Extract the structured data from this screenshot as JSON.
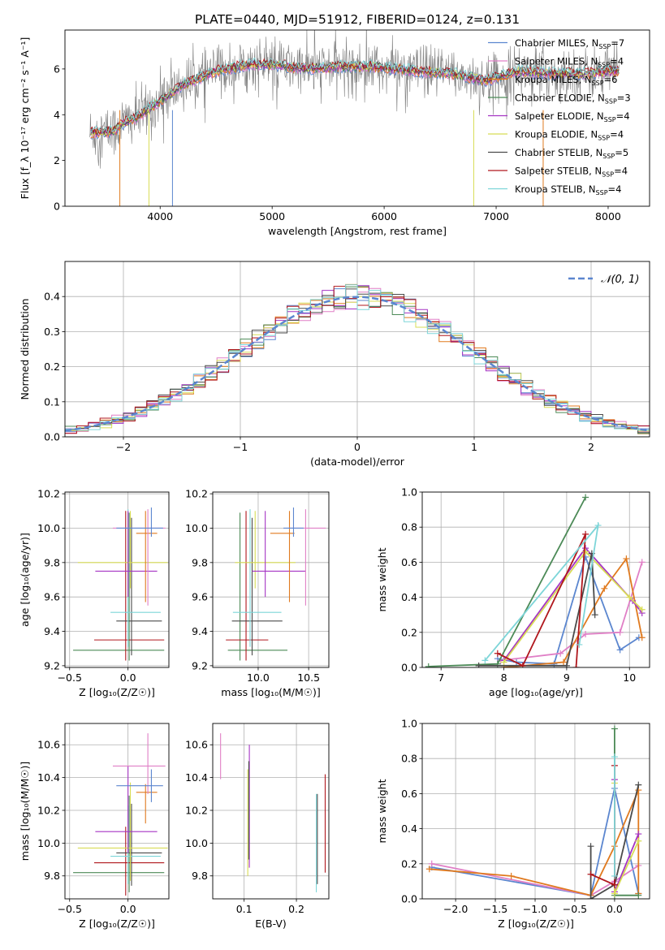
{
  "figure": {
    "title": "PLATE=0440, MJD=51912, FIBERID=0124, z=0.131"
  },
  "chart_data": [
    {
      "type": "line",
      "panel": "spectrum",
      "xlabel": "wavelength [Angstrom, rest frame]",
      "ylabel": "Flux [f_λ 10⁻¹⁷ erg cm⁻² s⁻¹ A⁻¹]",
      "xlim": [
        3150,
        8370
      ],
      "ylim": [
        0,
        7.7
      ],
      "xticks": [
        4000,
        5000,
        6000,
        7000,
        8000
      ],
      "yticks": [
        0,
        2,
        4,
        6
      ],
      "grid": false,
      "legend_position": "upper right",
      "observed_color": "#808080",
      "model_shape": {
        "x": [
          3400,
          3600,
          3650,
          3800,
          4000,
          4200,
          4500,
          4800,
          5000,
          5300,
          5600,
          5900,
          6100,
          6300,
          6600,
          6900,
          7200,
          7500,
          7800,
          8050
        ],
        "y": [
          3.2,
          3.3,
          3.6,
          3.9,
          4.6,
          5.3,
          5.9,
          6.2,
          6.2,
          6.0,
          6.1,
          6.1,
          6.0,
          5.9,
          5.8,
          5.5,
          5.9,
          5.8,
          5.8,
          5.9
        ]
      },
      "series": [
        {
          "name": "Chabrier MILES, N",
          "sub": "SSP",
          "eq": "=7",
          "color": "#5b86cf"
        },
        {
          "name": "Salpeter MILES, N",
          "sub": "SSP",
          "eq": "=4",
          "color": "#e07fc6"
        },
        {
          "name": "Kroupa MILES, N",
          "sub": "SSP",
          "eq": "=6",
          "color": "#e07a1f"
        },
        {
          "name": "Chabrier ELODIE, N",
          "sub": "SSP",
          "eq": "=3",
          "color": "#4c8a57"
        },
        {
          "name": "Salpeter ELODIE, N",
          "sub": "SSP",
          "eq": "=4",
          "color": "#a534c4"
        },
        {
          "name": "Kroupa ELODIE, N",
          "sub": "SSP",
          "eq": "=4",
          "color": "#d8dc55"
        },
        {
          "name": "Chabrier STELIB, N",
          "sub": "SSP",
          "eq": "=5",
          "color": "#4a4a4a"
        },
        {
          "name": "Salpeter STELIB, N",
          "sub": "SSP",
          "eq": "=4",
          "color": "#b0171d"
        },
        {
          "name": "Kroupa STELIB, N",
          "sub": "SSP",
          "eq": "=4",
          "color": "#7dd5d8"
        }
      ]
    },
    {
      "type": "line",
      "panel": "residuals",
      "xlabel": "(data-model)/error",
      "ylabel": "Normed distribution",
      "xlim": [
        -2.5,
        2.5
      ],
      "ylim": [
        0,
        0.5
      ],
      "xticks": [
        -2,
        -1,
        0,
        1,
        2
      ],
      "xticklabels": [
        "−2",
        "−1",
        "0",
        "1",
        "2"
      ],
      "yticks": [
        0,
        0.1,
        0.2,
        0.3,
        0.4
      ],
      "yticklabels": [
        "0.0",
        "0.1",
        "0.2",
        "0.3",
        "0.4"
      ],
      "grid": true,
      "legend": "𝒩(0, 1)",
      "bin_width": 0.1,
      "gaussian": {
        "mean": 0,
        "sigma": 1,
        "color": "#5b86cf"
      }
    },
    {
      "type": "scatter",
      "panel": "age-vs-Z",
      "xlabel": "Z [log₁₀(Z/Z☉)]",
      "ylabel": "age  [log₁₀(age/yr)]",
      "xlim": [
        -0.54,
        0.35
      ],
      "ylim": [
        9.19,
        10.21
      ],
      "xticks": [
        -0.5,
        0.0
      ],
      "xticklabels": [
        "−0.5",
        "0.0"
      ],
      "yticks": [
        9.2,
        9.4,
        9.6,
        9.8,
        10.0,
        10.2
      ],
      "yticklabels": [
        "9.2",
        "9.4",
        "9.6",
        "9.8",
        "10.0",
        "10.2"
      ],
      "grid": true,
      "points": [
        {
          "x": 0.01,
          "xerr": [
            0.48,
            0.3
          ],
          "y": 9.29,
          "yerr": [
            0.06,
            0.8
          ],
          "color": "#4c8a57"
        },
        {
          "x": -0.02,
          "xerr": [
            0.27,
            0.33
          ],
          "y": 9.35,
          "yerr": [
            0.12,
            0.75
          ],
          "color": "#b0171d"
        },
        {
          "x": 0.03,
          "xerr": [
            0.13,
            0.26
          ],
          "y": 9.46,
          "yerr": [
            0.2,
            0.6
          ],
          "color": "#4a4a4a"
        },
        {
          "x": 0.0,
          "xerr": [
            0.15,
            0.28
          ],
          "y": 9.51,
          "yerr": [
            0.2,
            0.6
          ],
          "color": "#7dd5d8"
        },
        {
          "x": 0.02,
          "xerr": [
            0.45,
            0.32
          ],
          "y": 9.8,
          "yerr": [
            0.15,
            0.3
          ],
          "color": "#d8dc55"
        },
        {
          "x": 0.0,
          "xerr": [
            0.28,
            0.25
          ],
          "y": 9.75,
          "yerr": [
            0.15,
            0.35
          ],
          "color": "#a534c4"
        },
        {
          "x": 0.15,
          "xerr": [
            0.08,
            0.1
          ],
          "y": 9.97,
          "yerr": [
            0.4,
            0.13
          ],
          "color": "#e07a1f"
        },
        {
          "x": 0.17,
          "xerr": [
            0.3,
            0.15
          ],
          "y": 10.0,
          "yerr": [
            0.45,
            0.11
          ],
          "color": "#e07fc6"
        },
        {
          "x": 0.2,
          "xerr": [
            0.3,
            0.1
          ],
          "y": 10.0,
          "yerr": [
            0.05,
            0.12
          ],
          "color": "#5b86cf"
        }
      ]
    },
    {
      "type": "scatter",
      "panel": "age-vs-mass",
      "xlabel": "mass [log₁₀(M/M☉)]",
      "ylabel": "",
      "xlim": [
        9.55,
        10.7
      ],
      "ylim": [
        9.19,
        10.21
      ],
      "xticks": [
        10.0,
        10.5
      ],
      "xticklabels": [
        "10.0",
        "10.5"
      ],
      "yticks": [
        9.2,
        9.4,
        9.6,
        9.8,
        10.0,
        10.2
      ],
      "yticklabels": [
        "9.2",
        "9.4",
        "9.6",
        "9.8",
        "10.0",
        "10.2"
      ],
      "grid": true,
      "points": [
        {
          "x": 9.82,
          "xerr": [
            0.12,
            0.47
          ],
          "y": 9.29,
          "yerr": [
            0.06,
            0.8
          ],
          "color": "#4c8a57"
        },
        {
          "x": 9.88,
          "xerr": [
            0.2,
            0.22
          ],
          "y": 9.35,
          "yerr": [
            0.12,
            0.75
          ],
          "color": "#b0171d"
        },
        {
          "x": 9.94,
          "xerr": [
            0.2,
            0.3
          ],
          "y": 9.46,
          "yerr": [
            0.2,
            0.6
          ],
          "color": "#4a4a4a"
        },
        {
          "x": 9.92,
          "xerr": [
            0.17,
            0.31
          ],
          "y": 9.51,
          "yerr": [
            0.2,
            0.6
          ],
          "color": "#7dd5d8"
        },
        {
          "x": 9.97,
          "xerr": [
            0.2,
            0.4
          ],
          "y": 9.8,
          "yerr": [
            0.15,
            0.3
          ],
          "color": "#d8dc55"
        },
        {
          "x": 10.07,
          "xerr": [
            0.13,
            0.4
          ],
          "y": 9.75,
          "yerr": [
            0.15,
            0.35
          ],
          "color": "#a534c4"
        },
        {
          "x": 10.31,
          "xerr": [
            0.19,
            0.05
          ],
          "y": 9.97,
          "yerr": [
            0.4,
            0.13
          ],
          "color": "#e07a1f"
        },
        {
          "x": 10.47,
          "xerr": [
            0.17,
            0.2
          ],
          "y": 10.0,
          "yerr": [
            0.45,
            0.11
          ],
          "color": "#e07fc6"
        },
        {
          "x": 10.35,
          "xerr": [
            0.1,
            0.1
          ],
          "y": 10.0,
          "yerr": [
            0.05,
            0.12
          ],
          "color": "#5b86cf"
        }
      ]
    },
    {
      "type": "line",
      "panel": "mass-weight-vs-age",
      "xlabel": "age  [log₁₀(age/yr)]",
      "ylabel": "mass weight",
      "xlim": [
        6.7,
        10.32
      ],
      "ylim": [
        0,
        1.0
      ],
      "xticks": [
        7,
        8,
        9,
        10
      ],
      "yticks": [
        0,
        0.2,
        0.4,
        0.6,
        0.8,
        1.0
      ],
      "yticklabels": [
        "0.0",
        "0.2",
        "0.4",
        "0.6",
        "0.8",
        "1.0"
      ],
      "grid": true,
      "series": [
        {
          "name": "Chabrier MILES",
          "color": "#5b86cf",
          "x": [
            7.9,
            8.2,
            8.8,
            9.3,
            9.85,
            10.15
          ],
          "y": [
            0.05,
            0.03,
            0.02,
            0.63,
            0.1,
            0.17
          ]
        },
        {
          "name": "Salpeter MILES",
          "color": "#e07fc6",
          "x": [
            7.95,
            8.9,
            9.3,
            9.85,
            10.2
          ],
          "y": [
            0.04,
            0.08,
            0.19,
            0.2,
            0.6
          ]
        },
        {
          "name": "Kroupa MILES",
          "color": "#e07a1f",
          "x": [
            8.0,
            8.95,
            9.6,
            9.95,
            10.2
          ],
          "y": [
            0.0,
            0.03,
            0.45,
            0.62,
            0.17
          ]
        },
        {
          "name": "Chabrier ELODIE",
          "color": "#4c8a57",
          "x": [
            6.8,
            7.9,
            9.3
          ],
          "y": [
            0.005,
            0.02,
            0.97
          ]
        },
        {
          "name": "Salpeter ELODIE",
          "color": "#a534c4",
          "x": [
            8.0,
            9.3,
            10.05,
            10.2
          ],
          "y": [
            0.04,
            0.68,
            0.38,
            0.31
          ]
        },
        {
          "name": "Kroupa ELODIE",
          "color": "#d8dc55",
          "x": [
            8.0,
            9.3,
            10.0,
            10.2
          ],
          "y": [
            0.03,
            0.66,
            0.4,
            0.33
          ]
        },
        {
          "name": "Chabrier STELIB",
          "color": "#4a4a4a",
          "x": [
            7.6,
            9.0,
            9.4,
            9.45
          ],
          "y": [
            0.01,
            0.01,
            0.65,
            0.3
          ]
        },
        {
          "name": "Salpeter STELIB",
          "color": "#b0171d",
          "x": [
            7.9,
            8.3,
            9.3,
            9.15
          ],
          "y": [
            0.08,
            0.01,
            0.76,
            0.0
          ]
        },
        {
          "name": "Kroupa STELIB",
          "color": "#7dd5d8",
          "x": [
            7.7,
            9.5,
            9.2
          ],
          "y": [
            0.04,
            0.81,
            0.13
          ]
        }
      ]
    },
    {
      "type": "scatter",
      "panel": "mass-vs-Z",
      "xlabel": "Z [log₁₀(Z/Z☉)]",
      "ylabel": "mass [log₁₀(M/M☉)]",
      "xlim": [
        -0.54,
        0.35
      ],
      "ylim": [
        9.66,
        10.73
      ],
      "xticks": [
        -0.5,
        0.0
      ],
      "xticklabels": [
        "−0.5",
        "0.0"
      ],
      "yticks": [
        9.8,
        10.0,
        10.2,
        10.4,
        10.6
      ],
      "yticklabels": [
        "9.8",
        "10.0",
        "10.2",
        "10.4",
        "10.6"
      ],
      "grid": true,
      "points": [
        {
          "x": 0.01,
          "xerr": [
            0.48,
            0.3
          ],
          "y": 9.82,
          "yerr": [
            0.12,
            0.47
          ],
          "color": "#4c8a57"
        },
        {
          "x": -0.02,
          "xerr": [
            0.27,
            0.33
          ],
          "y": 9.88,
          "yerr": [
            0.2,
            0.22
          ],
          "color": "#b0171d"
        },
        {
          "x": 0.03,
          "xerr": [
            0.13,
            0.26
          ],
          "y": 9.94,
          "yerr": [
            0.2,
            0.3
          ],
          "color": "#4a4a4a"
        },
        {
          "x": 0.0,
          "xerr": [
            0.15,
            0.28
          ],
          "y": 9.92,
          "yerr": [
            0.17,
            0.31
          ],
          "color": "#7dd5d8"
        },
        {
          "x": 0.02,
          "xerr": [
            0.45,
            0.32
          ],
          "y": 9.97,
          "yerr": [
            0.2,
            0.4
          ],
          "color": "#d8dc55"
        },
        {
          "x": 0.0,
          "xerr": [
            0.28,
            0.25
          ],
          "y": 10.07,
          "yerr": [
            0.13,
            0.4
          ],
          "color": "#a534c4"
        },
        {
          "x": 0.15,
          "xerr": [
            0.08,
            0.1
          ],
          "y": 10.31,
          "yerr": [
            0.19,
            0.05
          ],
          "color": "#e07a1f"
        },
        {
          "x": 0.17,
          "xerr": [
            0.3,
            0.15
          ],
          "y": 10.47,
          "yerr": [
            0.17,
            0.2
          ],
          "color": "#e07fc6"
        },
        {
          "x": 0.2,
          "xerr": [
            0.3,
            0.1
          ],
          "y": 10.35,
          "yerr": [
            0.1,
            0.1
          ],
          "color": "#5b86cf"
        }
      ]
    },
    {
      "type": "scatter",
      "panel": "mass-vs-EBV",
      "xlabel": "E(B-V)",
      "ylabel": "",
      "xlim": [
        0.04,
        0.262
      ],
      "ylim": [
        9.66,
        10.73
      ],
      "xticks": [
        0.1,
        0.2
      ],
      "xticklabels": [
        "0.1",
        "0.2"
      ],
      "yticks": [
        9.8,
        10.0,
        10.2,
        10.4,
        10.6
      ],
      "yticklabels": [
        "9.8",
        "10.0",
        "10.2",
        "10.4",
        "10.6"
      ],
      "grid": true,
      "points": [
        {
          "x": 0.055,
          "y": 10.53,
          "yerr": [
            0.14,
            0.14
          ],
          "color": "#e07fc6"
        },
        {
          "x": 0.107,
          "y": 10.05,
          "yerr": [
            0.25,
            0.4
          ],
          "color": "#d8dc55"
        },
        {
          "x": 0.11,
          "y": 10.2,
          "yerr": [
            0.35,
            0.4
          ],
          "color": "#a534c4"
        },
        {
          "x": 0.109,
          "y": 10.25,
          "yerr": [
            0.35,
            0.25
          ],
          "color": "#4a4a4a"
        },
        {
          "x": 0.238,
          "y": 10.0,
          "yerr": [
            0.3,
            0.3
          ],
          "color": "#7dd5d8"
        },
        {
          "x": 0.24,
          "y": 10.0,
          "yerr": [
            0.25,
            0.3
          ],
          "color": "#4a4a4a"
        },
        {
          "x": 0.255,
          "y": 10.12,
          "yerr": [
            0.3,
            0.3
          ],
          "color": "#b0171d"
        }
      ]
    },
    {
      "type": "line",
      "panel": "mass-weight-vs-Z",
      "xlabel": "Z [log₁₀(Z/Z☉)]",
      "ylabel": "mass weight",
      "xlim": [
        -2.42,
        0.44
      ],
      "ylim": [
        0,
        1.0
      ],
      "xticks": [
        -2.0,
        -1.5,
        -1.0,
        -0.5,
        0.0
      ],
      "xticklabels": [
        "−2.0",
        "−1.5",
        "−1.0",
        "−0.5",
        "0.0"
      ],
      "yticks": [
        0,
        0.2,
        0.4,
        0.6,
        0.8,
        1.0
      ],
      "yticklabels": [
        "0.0",
        "0.2",
        "0.4",
        "0.6",
        "0.8",
        "1.0"
      ],
      "grid": true,
      "series": [
        {
          "name": "Chabrier MILES",
          "color": "#5b86cf",
          "x": [
            -2.3,
            -0.3,
            0.0,
            0.3
          ],
          "y": [
            0.18,
            0.02,
            0.63,
            0.03
          ]
        },
        {
          "name": "Salpeter MILES",
          "color": "#e07fc6",
          "x": [
            -2.3,
            -0.3,
            0.0,
            0.3
          ],
          "y": [
            0.2,
            0.02,
            0.1,
            0.19
          ]
        },
        {
          "name": "Kroupa MILES",
          "color": "#e07a1f",
          "x": [
            -2.33,
            -1.3,
            -0.3,
            0.0,
            0.3,
            0.3
          ],
          "y": [
            0.17,
            0.13,
            0.02,
            0.3,
            0.62,
            0.03
          ]
        },
        {
          "name": "Chabrier ELODIE",
          "color": "#4c8a57",
          "x": [
            0.0,
            0.0,
            0.3
          ],
          "y": [
            0.97,
            0.02,
            0.02
          ]
        },
        {
          "name": "Salpeter ELODIE",
          "color": "#a534c4",
          "x": [
            0.0,
            0.0,
            0.3
          ],
          "y": [
            0.68,
            0.04,
            0.37
          ]
        },
        {
          "name": "Kroupa ELODIE",
          "color": "#d8dc55",
          "x": [
            0.0,
            0.0,
            0.3
          ],
          "y": [
            0.66,
            0.03,
            0.33
          ]
        },
        {
          "name": "Chabrier STELIB",
          "color": "#4a4a4a",
          "x": [
            -0.3,
            -0.3,
            0.0,
            0.3
          ],
          "y": [
            0.3,
            0.0,
            0.08,
            0.65
          ]
        },
        {
          "name": "Salpeter STELIB",
          "color": "#b0171d",
          "x": [
            -0.3,
            0.0,
            0.0
          ],
          "y": [
            0.14,
            0.08,
            0.76
          ]
        },
        {
          "name": "Kroupa STELIB",
          "color": "#7dd5d8",
          "x": [
            0.0,
            0.0
          ],
          "y": [
            0.81,
            0.13
          ]
        }
      ]
    }
  ]
}
